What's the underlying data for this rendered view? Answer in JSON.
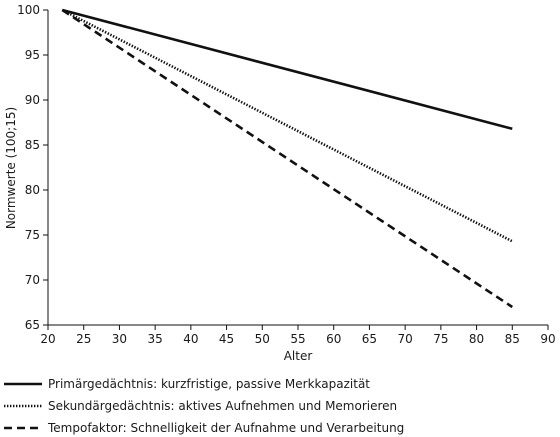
{
  "chart_data": {
    "type": "line",
    "xlabel": "Alter",
    "ylabel": "Normwerte (100;15)",
    "xlim": [
      20,
      90
    ],
    "ylim": [
      65,
      100
    ],
    "xticks": [
      20,
      25,
      30,
      35,
      40,
      45,
      50,
      55,
      60,
      65,
      70,
      75,
      80,
      85,
      90
    ],
    "yticks": [
      65,
      70,
      75,
      80,
      85,
      90,
      95,
      100
    ],
    "grid": false,
    "legend_position": "bottom",
    "series": [
      {
        "name": "Primärgedächtnis: kurzfristige, passive Merkkapazität",
        "style": "solid",
        "color": "#111111",
        "x": [
          22,
          85
        ],
        "y": [
          100,
          86.8
        ]
      },
      {
        "name": "Sekundärgedächtnis: aktives Aufnehmen und Memorieren",
        "style": "dotted",
        "color": "#111111",
        "x": [
          22,
          85
        ],
        "y": [
          100,
          74.3
        ]
      },
      {
        "name": "Tempofaktor: Schnelligkeit der Aufnahme und Verarbeitung",
        "style": "dashed",
        "color": "#111111",
        "x": [
          22,
          85
        ],
        "y": [
          100,
          67.0
        ]
      }
    ]
  }
}
